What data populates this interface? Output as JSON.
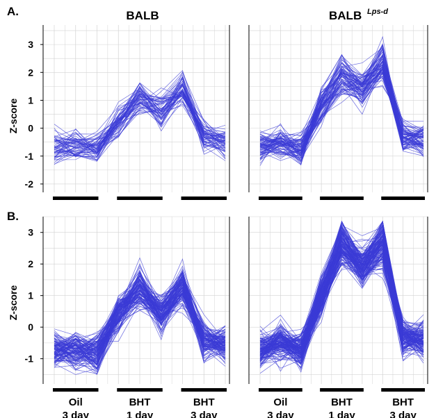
{
  "figure": {
    "panel_labels": [
      "A.",
      "B."
    ],
    "column_titles": [
      "BALB",
      "BALB",
      "Lps-d"
    ],
    "group_labels": [
      {
        "line1": "Oil",
        "line2": "3 day"
      },
      {
        "line1": "BHT",
        "line2": "1 day"
      },
      {
        "line1": "BHT",
        "line2": "3 day"
      }
    ]
  },
  "colors": {
    "lines": "#3b3bd6",
    "grid": "#d3d3d3",
    "bars": "#000000"
  },
  "chart_data": [
    {
      "type": "line",
      "title": "BALB",
      "panel": "A.",
      "ylabel": "Z-score",
      "ylim": [
        -2.3,
        3.7
      ],
      "yticks": [
        3,
        2,
        1,
        0,
        -1,
        -2
      ],
      "grid": true,
      "x": [
        1,
        2,
        3,
        4,
        5,
        6,
        7,
        8,
        9
      ],
      "groups": [
        "Oil 3 day",
        "BHT 1 day",
        "BHT 3 day"
      ],
      "profile_count": 60,
      "mean_profile": [
        -0.6,
        -0.6,
        -0.7,
        0.2,
        1.1,
        0.6,
        1.3,
        -0.3,
        -0.5
      ]
    },
    {
      "type": "line",
      "title": "BALB Lps-d",
      "panel": "A.",
      "ylim": [
        -2.3,
        3.7
      ],
      "yticks": [
        3,
        2,
        1,
        0,
        -1,
        -2
      ],
      "grid": true,
      "x": [
        1,
        2,
        3,
        4,
        5,
        6,
        7,
        8,
        9
      ],
      "groups": [
        "Oil 3 day",
        "BHT 1 day",
        "BHT 3 day"
      ],
      "profile_count": 80,
      "mean_profile": [
        -0.7,
        -0.5,
        -0.8,
        0.8,
        1.8,
        1.4,
        2.3,
        -0.3,
        -0.4
      ]
    },
    {
      "type": "line",
      "panel": "B.",
      "ylabel": "Z-score",
      "ylim": [
        -1.8,
        3.5
      ],
      "yticks": [
        3,
        2,
        1,
        0,
        -1
      ],
      "grid": true,
      "x": [
        1,
        2,
        3,
        4,
        5,
        6,
        7,
        8,
        9
      ],
      "groups": [
        "Oil 3 day",
        "BHT 1 day",
        "BHT 3 day"
      ],
      "profile_count": 120,
      "mean_profile": [
        -0.7,
        -0.7,
        -0.8,
        0.4,
        1.2,
        0.4,
        1.3,
        -0.4,
        -0.5
      ]
    },
    {
      "type": "line",
      "panel": "B.",
      "ylim": [
        -1.8,
        3.5
      ],
      "yticks": [
        3,
        2,
        1,
        0,
        -1
      ],
      "grid": true,
      "x": [
        1,
        2,
        3,
        4,
        5,
        6,
        7,
        8,
        9
      ],
      "groups": [
        "Oil 3 day",
        "BHT 1 day",
        "BHT 3 day"
      ],
      "profile_count": 150,
      "mean_profile": [
        -0.7,
        -0.5,
        -0.7,
        1.0,
        2.6,
        1.9,
        2.6,
        -0.3,
        -0.4
      ]
    }
  ]
}
